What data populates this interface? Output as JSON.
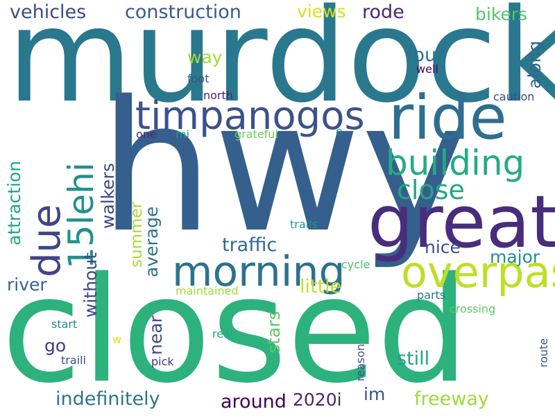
{
  "words": [
    {
      "text": "murdock",
      "color": "#2a788e"
    },
    {
      "text": "hwy",
      "color": "#355f8d"
    },
    {
      "text": "closed",
      "color": "#2db27d"
    },
    {
      "text": "great",
      "color": "#472d7b"
    },
    {
      "text": "ride",
      "color": "#2e6e8e"
    },
    {
      "text": "timpanogos",
      "color": "#3b528b"
    },
    {
      "text": "building",
      "color": "#25ab82"
    },
    {
      "text": "morning",
      "color": "#2c728e"
    },
    {
      "text": "overpass",
      "color": "#bddf26"
    },
    {
      "text": "close",
      "color": "#22a785"
    },
    {
      "text": "due",
      "color": "#414487"
    },
    {
      "text": "15lehi",
      "color": "#21918c"
    },
    {
      "text": "vehicles",
      "color": "#3e4a89"
    },
    {
      "text": "construction",
      "color": "#38598c"
    },
    {
      "text": "views",
      "color": "#d8e219"
    },
    {
      "text": "rode",
      "color": "#482677"
    },
    {
      "text": "bikers",
      "color": "#52c569"
    },
    {
      "text": "along",
      "color": "#31678e"
    },
    {
      "text": "four",
      "color": "#2d718e"
    },
    {
      "text": "way",
      "color": "#a2da37"
    },
    {
      "text": "foot",
      "color": "#3b528b"
    },
    {
      "text": "well",
      "color": "#440154"
    },
    {
      "text": "north",
      "color": "#482173"
    },
    {
      "text": "caution",
      "color": "#3e4a89"
    },
    {
      "text": "one",
      "color": "#482878"
    },
    {
      "text": "mi",
      "color": "#1f9e89"
    },
    {
      "text": "grateful",
      "color": "#6ccd5a"
    },
    {
      "text": "e",
      "color": "#228d8d"
    },
    {
      "text": "walkers",
      "color": "#3f4788"
    },
    {
      "text": "attraction",
      "color": "#20a486"
    },
    {
      "text": "average",
      "color": "#2c718e"
    },
    {
      "text": "summer",
      "color": "#a5db36"
    },
    {
      "text": "without",
      "color": "#3f4788"
    },
    {
      "text": "near",
      "color": "#3e4a89"
    },
    {
      "text": "stars",
      "color": "#5ec962"
    },
    {
      "text": "route",
      "color": "#39568c"
    },
    {
      "text": "reason",
      "color": "#3a538b"
    },
    {
      "text": "traffic",
      "color": "#306a8e"
    },
    {
      "text": "trails",
      "color": "#1f9a8a"
    },
    {
      "text": "nice",
      "color": "#3d4e8a"
    },
    {
      "text": "major",
      "color": "#21918c"
    },
    {
      "text": "river",
      "color": "#33638d"
    },
    {
      "text": "cycle",
      "color": "#4ac16d"
    },
    {
      "text": "little",
      "color": "#bddf26"
    },
    {
      "text": "maintained",
      "color": "#a0da39"
    },
    {
      "text": "parts",
      "color": "#2c728e"
    },
    {
      "text": "go",
      "color": "#453882"
    },
    {
      "text": "crossing",
      "color": "#5ec962"
    },
    {
      "text": "real",
      "color": "#22a884"
    },
    {
      "text": "start",
      "color": "#23888e"
    },
    {
      "text": "w",
      "color": "#dde318"
    },
    {
      "text": "still",
      "color": "#20a386"
    },
    {
      "text": "traili",
      "color": "#3e4989"
    },
    {
      "text": "pick",
      "color": "#46337f"
    },
    {
      "text": "im",
      "color": "#3b528b"
    },
    {
      "text": "indefinitely",
      "color": "#2b748e"
    },
    {
      "text": "around",
      "color": "#440154"
    },
    {
      "text": "2020i",
      "color": "#482475"
    },
    {
      "text": "freeway",
      "color": "#a0da39"
    }
  ]
}
